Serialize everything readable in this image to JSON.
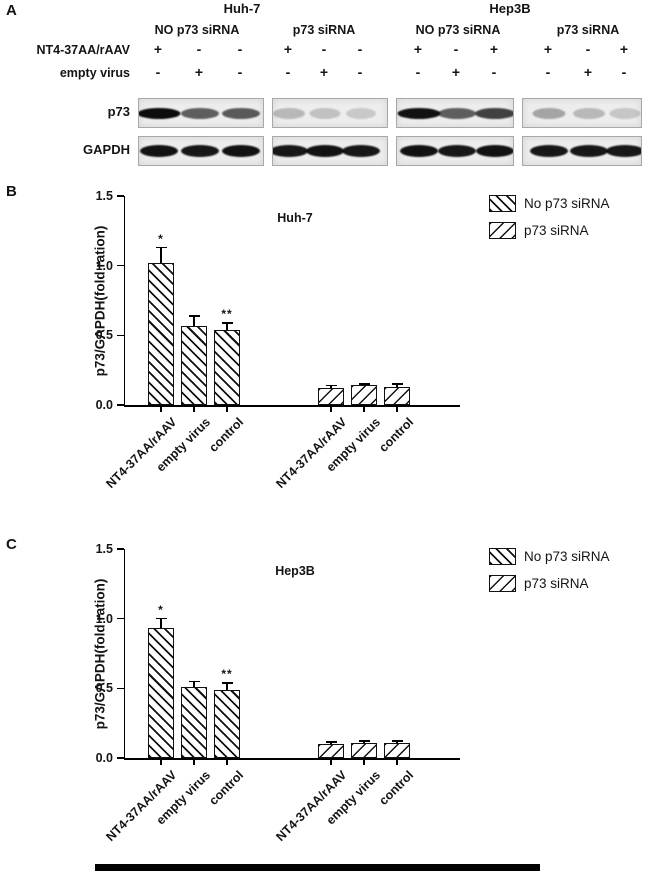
{
  "panels": {
    "a": "A",
    "b": "B",
    "c": "C"
  },
  "panel_a": {
    "cell_lines": [
      "Huh-7",
      "Hep3B"
    ],
    "group_labels": [
      "NO p73 siRNA",
      "p73 siRNA",
      "NO p73 siRNA",
      "p73 siRNA"
    ],
    "row_labels": [
      "NT4-37AA/rAAV",
      "empty virus"
    ],
    "nt4_signs": [
      [
        "+",
        "-",
        "-"
      ],
      [
        "+",
        "-",
        "-"
      ],
      [
        "+",
        "-",
        "+"
      ],
      [
        "+",
        "-",
        "+"
      ]
    ],
    "empty_virus_signs": [
      [
        "-",
        "+",
        "-"
      ],
      [
        "-",
        "+",
        "-"
      ],
      [
        "-",
        "+",
        "-"
      ],
      [
        "-",
        "+",
        "-"
      ]
    ],
    "blot_rows": [
      {
        "label": "p73",
        "band_intensities": [
          [
            0.95,
            0.6,
            0.62
          ],
          [
            0.22,
            0.18,
            0.15
          ],
          [
            0.92,
            0.6,
            0.72
          ],
          [
            0.3,
            0.22,
            0.16
          ]
        ]
      },
      {
        "label": "GAPDH",
        "band_intensities": [
          [
            0.92,
            0.9,
            0.92
          ],
          [
            0.9,
            0.92,
            0.9
          ],
          [
            0.92,
            0.9,
            0.92
          ],
          [
            0.9,
            0.9,
            0.9
          ]
        ]
      }
    ]
  },
  "chart_data": [
    {
      "type": "bar",
      "panel": "B",
      "title": "Huh-7",
      "xlabel": "",
      "ylabel": "p73/GAPDH(fold ration)",
      "ylim": [
        0,
        1.5
      ],
      "yticks": [
        0,
        0.5,
        1.0,
        1.5
      ],
      "grid": false,
      "legend_position": "top-right",
      "categories": [
        "NT4-37AA/rAAV",
        "empty virus",
        "control",
        "NT4-37AA/rAAV",
        "empty virus",
        "control"
      ],
      "series": [
        {
          "name": "No p73 siRNA",
          "values": [
            1.02,
            0.57,
            0.54
          ],
          "errors": [
            0.11,
            0.07,
            0.05
          ],
          "annotations": [
            "*",
            "",
            "**"
          ]
        },
        {
          "name": "p73 siRNA",
          "values": [
            0.12,
            0.14,
            0.13
          ],
          "errors": [
            0.02,
            0.012,
            0.02
          ],
          "annotations": [
            "",
            "",
            ""
          ]
        }
      ],
      "legend": [
        "No p73 siRNA",
        "p73 siRNA"
      ]
    },
    {
      "type": "bar",
      "panel": "C",
      "title": "Hep3B",
      "xlabel": "",
      "ylabel": "p73/GAPDH(fold ration)",
      "ylim": [
        0,
        1.5
      ],
      "yticks": [
        0,
        0.5,
        1.0,
        1.5
      ],
      "grid": false,
      "legend_position": "top-right",
      "categories": [
        "NT4-37AA/rAAV",
        "empty virus",
        "control",
        "NT4-37AA/rAAV",
        "empty virus",
        "control"
      ],
      "series": [
        {
          "name": "No p73 siRNA",
          "values": [
            0.93,
            0.51,
            0.49
          ],
          "errors": [
            0.07,
            0.04,
            0.05
          ],
          "annotations": [
            "*",
            "",
            "**"
          ]
        },
        {
          "name": "p73 siRNA",
          "values": [
            0.1,
            0.11,
            0.11
          ],
          "errors": [
            0.015,
            0.012,
            0.012
          ],
          "annotations": [
            "",
            "",
            ""
          ]
        }
      ],
      "legend": [
        "No p73 siRNA",
        "p73 siRNA"
      ]
    }
  ]
}
